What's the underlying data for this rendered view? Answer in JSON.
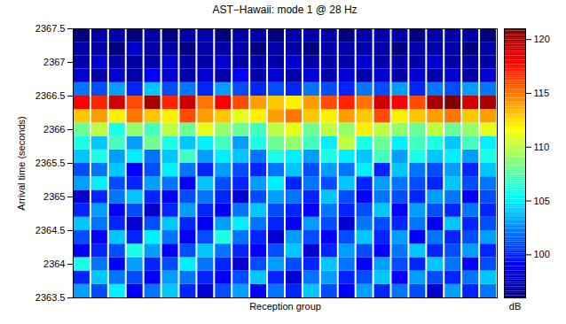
{
  "chart_data": {
    "type": "heatmap",
    "title": "AST−Hawaii:  mode 1 @ 28 Hz",
    "x_label": "Reception group",
    "y_label": "Arrival time (seconds)",
    "tick_labels": "y",
    "ylim": [
      2363.5,
      2367.5
    ],
    "yticks": [
      2363.5,
      2364,
      2364.5,
      2365,
      2365.5,
      2366,
      2366.5,
      2367,
      2367.5
    ],
    "time_bins": [
      2363.5,
      2363.7,
      2363.9,
      2364.1,
      2364.3,
      2364.5,
      2364.7,
      2364.9,
      2365.1,
      2365.3,
      2365.5,
      2365.7,
      2365.9,
      2366.1,
      2366.3,
      2366.5,
      2366.7,
      2366.9,
      2367.1,
      2367.3,
      2367.5
    ],
    "cells": [
      [
        103,
        100,
        106,
        99,
        101,
        104,
        100,
        98,
        103,
        101,
        104,
        106,
        108,
        113,
        118,
        102,
        98,
        97,
        97,
        96
      ],
      [
        101,
        104,
        102,
        100,
        99,
        102,
        103,
        100,
        105,
        102,
        106,
        104,
        110,
        114,
        117,
        101,
        97,
        98,
        97,
        97
      ],
      [
        105,
        102,
        99,
        101,
        104,
        100,
        99,
        102,
        101,
        104,
        103,
        107,
        106,
        112,
        119,
        103,
        98,
        97,
        96,
        97
      ],
      [
        99,
        101,
        103,
        106,
        100,
        98,
        101,
        104,
        100,
        99,
        105,
        103,
        109,
        115,
        116,
        100,
        97,
        97,
        98,
        96
      ],
      [
        102,
        99,
        100,
        103,
        105,
        101,
        98,
        100,
        103,
        101,
        102,
        108,
        107,
        113,
        120,
        104,
        99,
        97,
        97,
        97
      ],
      [
        104,
        103,
        101,
        99,
        102,
        104,
        100,
        99,
        102,
        105,
        104,
        106,
        110,
        112,
        117,
        101,
        98,
        98,
        97,
        96
      ],
      [
        100,
        102,
        105,
        101,
        99,
        100,
        103,
        101,
        99,
        102,
        107,
        104,
        108,
        116,
        119,
        102,
        97,
        97,
        96,
        97
      ],
      [
        98,
        100,
        102,
        104,
        101,
        99,
        100,
        102,
        104,
        100,
        103,
        105,
        111,
        114,
        115,
        100,
        98,
        97,
        97,
        97
      ],
      [
        101,
        99,
        100,
        102,
        106,
        103,
        99,
        100,
        101,
        103,
        105,
        107,
        109,
        113,
        118,
        103,
        97,
        98,
        97,
        96
      ],
      [
        103,
        101,
        98,
        100,
        102,
        105,
        102,
        98,
        100,
        101,
        104,
        103,
        108,
        111,
        116,
        101,
        99,
        97,
        97,
        97
      ],
      [
        99,
        104,
        101,
        99,
        100,
        102,
        104,
        101,
        103,
        100,
        102,
        106,
        107,
        112,
        114,
        100,
        97,
        97,
        96,
        97
      ],
      [
        102,
        100,
        103,
        101,
        98,
        100,
        101,
        103,
        105,
        102,
        106,
        108,
        110,
        114,
        113,
        101,
        98,
        97,
        97,
        96
      ],
      [
        100,
        98,
        101,
        104,
        103,
        99,
        100,
        102,
        100,
        104,
        105,
        109,
        111,
        115,
        112,
        100,
        97,
        98,
        97,
        97
      ],
      [
        104,
        102,
        100,
        98,
        101,
        103,
        99,
        100,
        102,
        101,
        103,
        107,
        108,
        113,
        114,
        102,
        98,
        97,
        96,
        97
      ],
      [
        101,
        103,
        104,
        100,
        99,
        101,
        102,
        104,
        101,
        103,
        106,
        105,
        110,
        112,
        116,
        101,
        97,
        97,
        97,
        97
      ],
      [
        99,
        100,
        102,
        103,
        101,
        98,
        100,
        101,
        104,
        102,
        105,
        110,
        109,
        114,
        117,
        100,
        98,
        97,
        97,
        96
      ],
      [
        103,
        101,
        99,
        101,
        104,
        102,
        101,
        99,
        100,
        105,
        104,
        106,
        112,
        113,
        115,
        102,
        97,
        98,
        97,
        97
      ],
      [
        100,
        104,
        103,
        99,
        100,
        101,
        104,
        102,
        103,
        100,
        107,
        108,
        110,
        116,
        119,
        101,
        98,
        97,
        97,
        97
      ],
      [
        102,
        99,
        101,
        102,
        103,
        100,
        99,
        101,
        102,
        104,
        103,
        105,
        109,
        112,
        118,
        103,
        97,
        97,
        96,
        97
      ],
      [
        101,
        103,
        100,
        104,
        99,
        102,
        103,
        100,
        101,
        102,
        106,
        107,
        108,
        113,
        116,
        100,
        98,
        97,
        97,
        96
      ],
      [
        98,
        101,
        104,
        100,
        102,
        99,
        101,
        103,
        100,
        101,
        104,
        106,
        110,
        114,
        120,
        102,
        97,
        98,
        97,
        97
      ],
      [
        103,
        100,
        102,
        101,
        100,
        104,
        100,
        102,
        104,
        103,
        105,
        104,
        108,
        115,
        121,
        101,
        98,
        97,
        97,
        97
      ],
      [
        100,
        102,
        99,
        103,
        101,
        100,
        102,
        99,
        101,
        100,
        103,
        107,
        109,
        113,
        119,
        103,
        97,
        97,
        96,
        97
      ],
      [
        102,
        104,
        101,
        100,
        103,
        101,
        100,
        101,
        102,
        104,
        106,
        105,
        111,
        114,
        120,
        102,
        98,
        97,
        97,
        96
      ]
    ],
    "colorbar": {
      "range": [
        96,
        121
      ],
      "ticks": [
        100,
        105,
        110,
        115,
        120
      ],
      "label": "dB"
    }
  }
}
